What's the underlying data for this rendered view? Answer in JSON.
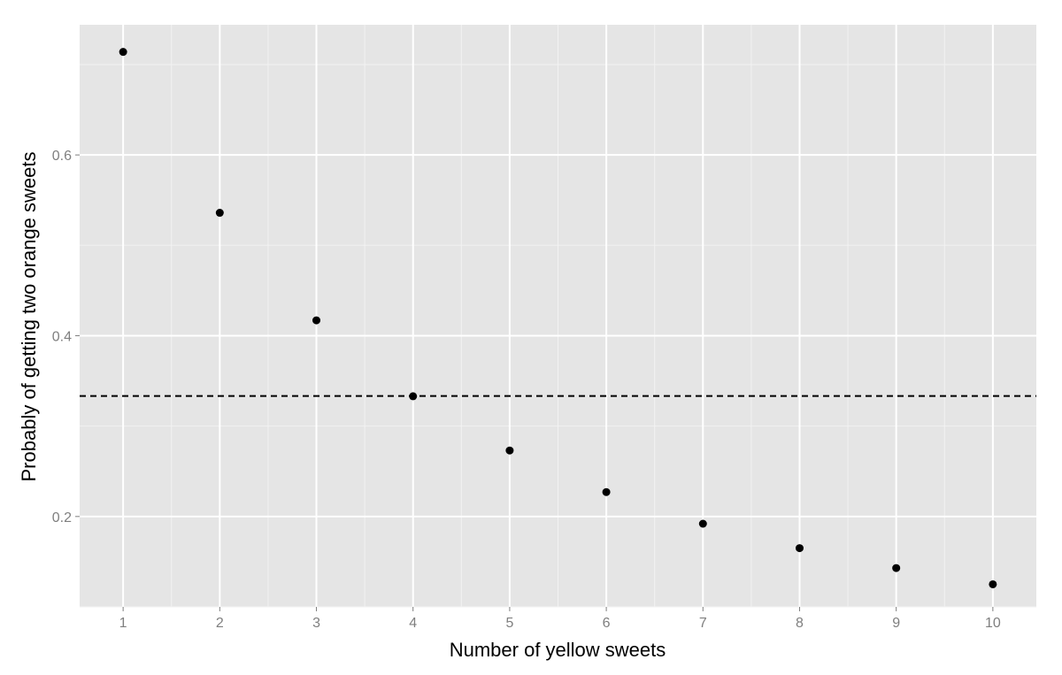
{
  "chart_data": {
    "type": "scatter",
    "title": "",
    "xlabel": "Number of yellow sweets",
    "ylabel": "Probably of getting two orange sweets",
    "x": [
      1,
      2,
      3,
      4,
      5,
      6,
      7,
      8,
      9,
      10
    ],
    "y": [
      0.714,
      0.536,
      0.417,
      0.333,
      0.273,
      0.227,
      0.192,
      0.165,
      0.143,
      0.125
    ],
    "xlim": [
      0.55,
      10.45
    ],
    "ylim": [
      0.1,
      0.744
    ],
    "xticks": [
      "1",
      "2",
      "3",
      "4",
      "5",
      "6",
      "7",
      "8",
      "9",
      "10"
    ],
    "yticks": [
      "0.2",
      "0.4",
      "0.6"
    ],
    "yticks_values": [
      0.2,
      0.4,
      0.6
    ],
    "reference_line": {
      "y": 0.3333,
      "style": "dashed",
      "color": "#000000"
    },
    "grid": true,
    "colors": {
      "panel": "#e5e5e5",
      "grid_major": "#ffffff",
      "grid_minor": "#f2f2f2",
      "point": "#000000"
    }
  }
}
